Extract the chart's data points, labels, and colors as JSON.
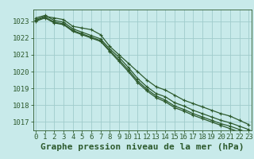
{
  "title": "Graphe pression niveau de la mer (hPa)",
  "bg_color": "#c8eaea",
  "grid_color": "#a0cccc",
  "line_color": "#2d5a2d",
  "x": [
    0,
    1,
    2,
    3,
    4,
    5,
    6,
    7,
    8,
    9,
    10,
    11,
    12,
    13,
    14,
    15,
    16,
    17,
    18,
    19,
    20,
    21,
    22,
    23
  ],
  "series": [
    [
      1023.1,
      1023.3,
      1023.2,
      1023.1,
      1022.7,
      1022.6,
      1022.5,
      1022.2,
      1021.5,
      1021.0,
      1020.5,
      1020.0,
      1019.5,
      1019.1,
      1018.9,
      1018.6,
      1018.3,
      1018.1,
      1017.9,
      1017.7,
      1017.5,
      1017.35,
      1017.1,
      1016.85
    ],
    [
      1023.2,
      1023.35,
      1023.05,
      1022.95,
      1022.55,
      1022.35,
      1022.15,
      1021.95,
      1021.35,
      1020.85,
      1020.25,
      1019.6,
      1019.1,
      1018.7,
      1018.5,
      1018.15,
      1017.95,
      1017.7,
      1017.5,
      1017.3,
      1017.1,
      1016.95,
      1016.75,
      1016.55
    ],
    [
      1023.0,
      1023.2,
      1022.9,
      1022.8,
      1022.4,
      1022.2,
      1022.0,
      1021.8,
      1021.2,
      1020.6,
      1020.0,
      1019.35,
      1018.85,
      1018.45,
      1018.2,
      1017.85,
      1017.65,
      1017.4,
      1017.2,
      1017.0,
      1016.8,
      1016.6,
      1016.4,
      1016.2
    ],
    [
      1023.05,
      1023.25,
      1022.95,
      1022.85,
      1022.45,
      1022.25,
      1022.05,
      1021.85,
      1021.25,
      1020.7,
      1020.1,
      1019.45,
      1018.95,
      1018.55,
      1018.3,
      1017.95,
      1017.75,
      1017.5,
      1017.3,
      1017.1,
      1016.9,
      1016.75,
      1016.55,
      1016.35
    ]
  ],
  "ylim_min": 1016.5,
  "ylim_max": 1023.7,
  "yticks": [
    1017,
    1018,
    1019,
    1020,
    1021,
    1022,
    1023
  ],
  "xticks": [
    0,
    1,
    2,
    3,
    4,
    5,
    6,
    7,
    8,
    9,
    10,
    11,
    12,
    13,
    14,
    15,
    16,
    17,
    18,
    19,
    20,
    21,
    22,
    23
  ],
  "title_fontsize": 8,
  "tick_fontsize": 6.5,
  "marker": "+",
  "marker_size": 3.5,
  "linewidth": 0.9
}
